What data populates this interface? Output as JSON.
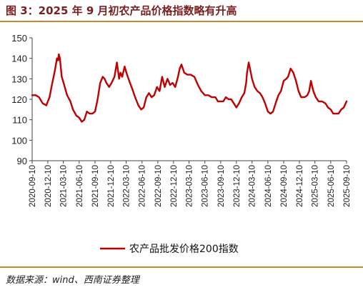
{
  "figure": {
    "title": "图 3：2025 年 9 月初农产品价格指数略有升高",
    "source": "数据来源：wind、西南证券整理"
  },
  "colors": {
    "accent": "#c00000",
    "rule": "#c7872a",
    "title": "#7a1f1f"
  },
  "chart_data": {
    "type": "line",
    "title": "",
    "xlabel": "",
    "ylabel": "",
    "ylim": [
      90,
      150
    ],
    "yticks": [
      90,
      100,
      110,
      120,
      130,
      140,
      150
    ],
    "xlim": [
      "2020-09-10",
      "2025-09-10"
    ],
    "xticks": [
      "2020-09-10",
      "2020-12-10",
      "2021-03-10",
      "2021-06-10",
      "2021-09-10",
      "2021-12-10",
      "2022-03-10",
      "2022-06-10",
      "2022-09-10",
      "2022-12-10",
      "2023-03-10",
      "2023-06-10",
      "2023-09-10",
      "2023-12-10",
      "2024-03-10",
      "2024-06-10",
      "2024-09-10",
      "2024-12-10",
      "2025-03-10",
      "2025-06-10",
      "2025-09-10"
    ],
    "grid": false,
    "legend": "bottom-center",
    "series": [
      {
        "name": "农产品批发价格200指数",
        "color": "#c00000",
        "x": [
          "2020-09-10",
          "2020-10-01",
          "2020-10-20",
          "2020-11-10",
          "2020-12-01",
          "2020-12-20",
          "2021-01-05",
          "2021-01-20",
          "2021-02-01",
          "2021-02-08",
          "2021-02-12",
          "2021-02-18",
          "2021-03-01",
          "2021-03-15",
          "2021-04-01",
          "2021-04-20",
          "2021-05-05",
          "2021-05-25",
          "2021-06-10",
          "2021-06-25",
          "2021-07-10",
          "2021-07-25",
          "2021-08-10",
          "2021-08-25",
          "2021-09-10",
          "2021-09-25",
          "2021-10-10",
          "2021-10-25",
          "2021-11-05",
          "2021-11-15",
          "2021-12-01",
          "2021-12-15",
          "2022-01-01",
          "2022-01-15",
          "2022-01-28",
          "2022-02-05",
          "2022-02-15",
          "2022-03-01",
          "2022-03-15",
          "2022-04-01",
          "2022-04-15",
          "2022-05-01",
          "2022-05-20",
          "2022-06-05",
          "2022-06-20",
          "2022-07-05",
          "2022-07-20",
          "2022-08-05",
          "2022-08-20",
          "2022-09-05",
          "2022-09-20",
          "2022-10-05",
          "2022-10-20",
          "2022-11-05",
          "2022-11-20",
          "2022-12-05",
          "2022-12-20",
          "2023-01-05",
          "2023-01-15",
          "2023-01-25",
          "2023-02-10",
          "2023-03-01",
          "2023-03-20",
          "2023-04-10",
          "2023-05-01",
          "2023-05-20",
          "2023-06-10",
          "2023-07-01",
          "2023-07-20",
          "2023-08-10",
          "2023-08-25",
          "2023-09-10",
          "2023-09-25",
          "2023-10-10",
          "2023-10-25",
          "2023-11-10",
          "2023-11-25",
          "2023-12-10",
          "2023-12-25",
          "2024-01-10",
          "2024-01-25",
          "2024-02-05",
          "2024-02-10",
          "2024-02-20",
          "2024-03-10",
          "2024-03-25",
          "2024-04-10",
          "2024-04-25",
          "2024-05-10",
          "2024-05-25",
          "2024-06-10",
          "2024-06-25",
          "2024-07-10",
          "2024-07-25",
          "2024-08-10",
          "2024-08-25",
          "2024-09-10",
          "2024-09-25",
          "2024-10-05",
          "2024-10-20",
          "2024-11-05",
          "2024-11-20",
          "2024-12-05",
          "2024-12-20",
          "2025-01-10",
          "2025-01-25",
          "2025-02-05",
          "2025-02-15",
          "2025-03-01",
          "2025-03-15",
          "2025-04-01",
          "2025-04-20",
          "2025-05-10",
          "2025-05-25",
          "2025-06-10",
          "2025-06-25",
          "2025-07-10",
          "2025-07-25",
          "2025-08-10",
          "2025-08-25",
          "2025-09-10"
        ],
        "values": [
          122,
          122,
          121,
          118,
          117,
          121,
          128,
          134,
          140,
          139,
          142,
          140,
          131,
          127,
          122,
          119,
          115,
          112,
          111,
          109,
          110,
          114,
          113,
          113,
          114,
          120,
          128,
          131,
          130,
          128,
          126,
          128,
          131,
          138,
          130,
          133,
          131,
          136,
          132,
          128,
          125,
          121,
          117,
          115,
          116,
          121,
          123,
          121,
          122,
          126,
          124,
          131,
          126,
          130,
          127,
          128,
          126,
          131,
          135,
          137,
          133,
          132,
          132,
          131,
          127,
          124,
          122,
          122,
          121,
          121,
          119,
          119,
          119,
          121,
          120,
          120,
          118,
          116,
          118,
          121,
          123,
          128,
          133,
          138,
          130,
          126,
          124,
          123,
          121,
          118,
          114,
          113,
          114,
          118,
          122,
          124,
          129,
          130,
          131,
          135,
          133,
          129,
          124,
          121,
          121,
          122,
          124,
          129,
          124,
          121,
          119,
          119,
          118,
          116,
          115,
          113,
          113,
          113,
          115,
          116,
          119
        ]
      }
    ]
  }
}
